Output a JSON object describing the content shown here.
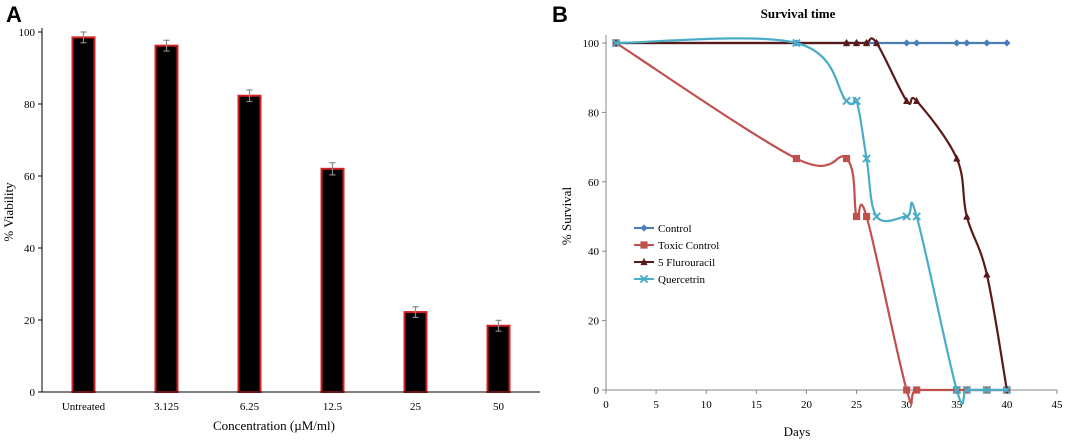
{
  "chart_data": [
    {
      "panel": "A",
      "type": "bar",
      "title": "",
      "xlabel": "Concentration (µM/ml)",
      "ylabel": "% Viability",
      "categories": [
        "Untreated",
        "3.125",
        "6.25",
        "12.5",
        "25",
        "50"
      ],
      "values": [
        98.5,
        96.2,
        82.3,
        62.0,
        22.2,
        18.4
      ],
      "errors": [
        1.5,
        1.5,
        1.6,
        1.7,
        1.5,
        1.5
      ],
      "ylim": [
        0,
        100
      ],
      "yticks": [
        0,
        20,
        40,
        60,
        80,
        100
      ],
      "grid": false,
      "colors": {
        "fill": "#000000",
        "edge": "#d42020",
        "error": "#8a8a8a"
      }
    },
    {
      "panel": "B",
      "type": "line",
      "title": "Survival time",
      "xlabel": "Days",
      "ylabel": "% Survival",
      "xlim": [
        0,
        45
      ],
      "ylim": [
        0,
        100
      ],
      "xticks": [
        0,
        5,
        10,
        15,
        20,
        25,
        30,
        35,
        40,
        45
      ],
      "yticks": [
        0,
        20,
        40,
        60,
        80,
        100
      ],
      "grid": false,
      "legend_position": "left-middle",
      "series": [
        {
          "name": "Control",
          "marker": "diamond",
          "color": "#4a7ebb",
          "smooth": false,
          "x": [
            1,
            19,
            24,
            25,
            26,
            27,
            30,
            31,
            35,
            36,
            38,
            40
          ],
          "y": [
            100,
            100,
            100,
            100,
            100,
            100,
            100,
            100,
            100,
            100,
            100,
            100
          ]
        },
        {
          "name": "Toxic Control",
          "marker": "square",
          "color": "#c0504d",
          "smooth": true,
          "x": [
            1,
            19,
            24,
            25,
            26,
            30,
            31,
            35,
            36,
            38,
            40
          ],
          "y": [
            100,
            66.7,
            66.7,
            50,
            50,
            0,
            0,
            0,
            0,
            0,
            0
          ]
        },
        {
          "name": "5 Flurouracil",
          "marker": "triangle",
          "color": "#5a1a1a",
          "smooth": true,
          "x": [
            1,
            24,
            25,
            26,
            27,
            30,
            31,
            35,
            36,
            38,
            40
          ],
          "y": [
            100,
            100,
            100,
            100,
            100,
            83.3,
            83.3,
            66.7,
            50,
            33.3,
            0
          ]
        },
        {
          "name": "Quercetrin",
          "marker": "x",
          "color": "#4bacc6",
          "smooth": true,
          "x": [
            1,
            19,
            24,
            25,
            26,
            27,
            30,
            31,
            35,
            36,
            38,
            40
          ],
          "y": [
            100,
            100,
            83.3,
            83.3,
            66.7,
            50,
            50,
            50,
            0,
            0,
            0,
            0
          ]
        }
      ]
    }
  ],
  "panels": {
    "a_letter": "A",
    "b_letter": "B"
  }
}
